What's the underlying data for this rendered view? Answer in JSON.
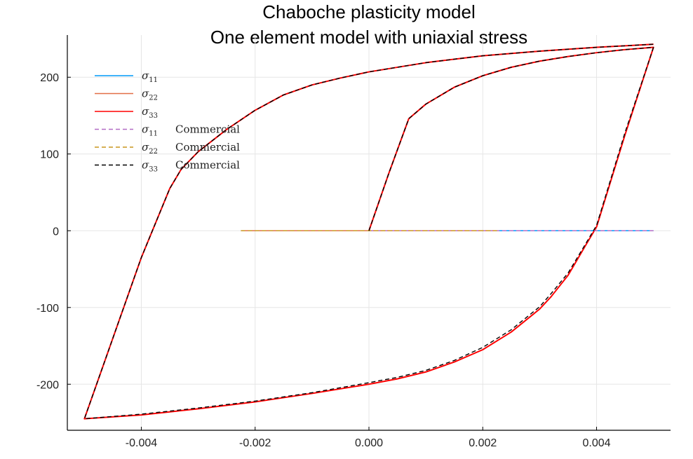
{
  "chart_data": {
    "type": "line",
    "title_lines": [
      "Chaboche plasticity model",
      "One element model with uniaxial stress"
    ],
    "xlabel": "",
    "ylabel": "",
    "xlim": [
      -0.0053,
      0.0053
    ],
    "ylim": [
      -260,
      255
    ],
    "x_ticks": [
      -0.004,
      -0.002,
      0.0,
      0.002,
      0.004
    ],
    "x_tick_labels": [
      "-0.004",
      "-0.002",
      "0.000",
      "0.002",
      "0.004"
    ],
    "y_ticks": [
      -200,
      -100,
      0,
      100,
      200
    ],
    "y_tick_labels": [
      "-200",
      "-100",
      "0",
      "100",
      "200"
    ],
    "grid": true,
    "legend_position": "top-left",
    "series": [
      {
        "legend_symbol": "σ",
        "legend_subscript": "11",
        "legend_suffix": "",
        "color": "#009af9",
        "dash": "solid",
        "points": [
          [
            0.0,
            0.0
          ],
          [
            0.0025,
            0.0
          ],
          [
            0.005,
            0.0
          ]
        ]
      },
      {
        "legend_symbol": "σ",
        "legend_subscript": "22",
        "legend_suffix": "",
        "color": "#e26f46",
        "dash": "solid",
        "points": [
          [
            -0.00225,
            0.0
          ],
          [
            0.0,
            0.0
          ],
          [
            0.00225,
            0.0
          ]
        ]
      },
      {
        "legend_symbol": "σ",
        "legend_subscript": "33",
        "legend_suffix": "",
        "color": "#ff0000",
        "dash": "solid",
        "points": [
          [
            0.0,
            0.0
          ],
          [
            0.00035,
            75.0
          ],
          [
            0.0007,
            146.0
          ],
          [
            0.001,
            165.0
          ],
          [
            0.0015,
            187.0
          ],
          [
            0.002,
            202.0
          ],
          [
            0.0025,
            213.0
          ],
          [
            0.003,
            221.0
          ],
          [
            0.0035,
            227.0
          ],
          [
            0.004,
            232.0
          ],
          [
            0.0045,
            236.0
          ],
          [
            0.005,
            239.0
          ],
          [
            0.0045,
            125.0
          ],
          [
            0.004,
            5.0
          ],
          [
            0.0038,
            -20.0
          ],
          [
            0.0035,
            -58.0
          ],
          [
            0.0032,
            -86.0
          ],
          [
            0.003,
            -102.0
          ],
          [
            0.0025,
            -132.0
          ],
          [
            0.002,
            -155.0
          ],
          [
            0.0015,
            -171.0
          ],
          [
            0.001,
            -184.0
          ],
          [
            0.0005,
            -193.0
          ],
          [
            0.0,
            -200.0
          ],
          [
            -0.001,
            -212.0
          ],
          [
            -0.002,
            -223.0
          ],
          [
            -0.003,
            -232.0
          ],
          [
            -0.004,
            -240.0
          ],
          [
            -0.005,
            -245.0
          ],
          [
            -0.0045,
            -140.0
          ],
          [
            -0.004,
            -35.0
          ],
          [
            -0.0035,
            55.0
          ],
          [
            -0.0033,
            80.0
          ],
          [
            -0.003,
            103.0
          ],
          [
            -0.0025,
            132.0
          ],
          [
            -0.002,
            157.0
          ],
          [
            -0.0015,
            177.0
          ],
          [
            -0.001,
            190.0
          ],
          [
            -0.0005,
            199.0
          ],
          [
            0.0,
            207.0
          ],
          [
            0.001,
            219.0
          ],
          [
            0.002,
            228.0
          ],
          [
            0.003,
            234.0
          ],
          [
            0.004,
            239.0
          ],
          [
            0.005,
            243.0
          ]
        ]
      },
      {
        "legend_symbol": "σ",
        "legend_subscript": "11",
        "legend_suffix": "Commercial",
        "color": "#b26cc6",
        "dash": "dashed",
        "points": [
          [
            0.0,
            0.0
          ],
          [
            0.0025,
            0.0
          ],
          [
            0.005,
            0.0
          ]
        ]
      },
      {
        "legend_symbol": "σ",
        "legend_subscript": "22",
        "legend_suffix": "Commercial",
        "color": "#c8961e",
        "dash": "dashed",
        "points": [
          [
            -0.00225,
            0.0
          ],
          [
            0.0,
            0.0
          ],
          [
            0.00225,
            0.0
          ]
        ]
      },
      {
        "legend_symbol": "σ",
        "legend_subscript": "33",
        "legend_suffix": "Commercial",
        "color": "#000000",
        "dash": "dashed",
        "points": [
          [
            0.0,
            0.0
          ],
          [
            0.00035,
            75.0
          ],
          [
            0.0007,
            146.0
          ],
          [
            0.001,
            165.0
          ],
          [
            0.0015,
            187.0
          ],
          [
            0.002,
            202.0
          ],
          [
            0.0025,
            213.0
          ],
          [
            0.003,
            221.0
          ],
          [
            0.0035,
            227.0
          ],
          [
            0.004,
            232.0
          ],
          [
            0.0045,
            236.0
          ],
          [
            0.005,
            239.0
          ],
          [
            0.0045,
            128.0
          ],
          [
            0.004,
            7.0
          ],
          [
            0.0038,
            -18.0
          ],
          [
            0.0035,
            -55.0
          ],
          [
            0.0032,
            -82.0
          ],
          [
            0.003,
            -99.0
          ],
          [
            0.0025,
            -129.0
          ],
          [
            0.002,
            -152.0
          ],
          [
            0.0015,
            -169.0
          ],
          [
            0.001,
            -182.0
          ],
          [
            0.0005,
            -191.0
          ],
          [
            0.0,
            -198.0
          ],
          [
            -0.001,
            -211.0
          ],
          [
            -0.002,
            -222.0
          ],
          [
            -0.003,
            -231.0
          ],
          [
            -0.004,
            -239.0
          ],
          [
            -0.005,
            -245.0
          ],
          [
            -0.0045,
            -140.0
          ],
          [
            -0.004,
            -35.0
          ],
          [
            -0.0035,
            55.0
          ],
          [
            -0.0033,
            80.0
          ],
          [
            -0.003,
            103.0
          ],
          [
            -0.0025,
            132.0
          ],
          [
            -0.002,
            157.0
          ],
          [
            -0.0015,
            177.0
          ],
          [
            -0.001,
            190.0
          ],
          [
            -0.0005,
            199.0
          ],
          [
            0.0,
            207.0
          ],
          [
            0.001,
            219.0
          ],
          [
            0.002,
            228.0
          ],
          [
            0.003,
            234.0
          ],
          [
            0.004,
            239.0
          ],
          [
            0.005,
            243.0
          ]
        ]
      }
    ]
  }
}
